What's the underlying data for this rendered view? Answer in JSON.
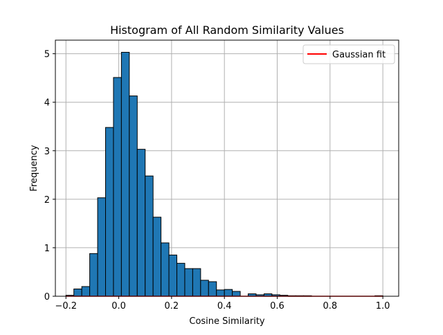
{
  "chart_data": {
    "type": "bar",
    "title": "Histogram of All Random Similarity Values",
    "xlabel": "Cosine Similarity",
    "ylabel": "Frequency",
    "xlim": [
      -0.24,
      1.06
    ],
    "ylim": [
      0,
      5.28
    ],
    "xticks": [
      -0.2,
      0.0,
      0.2,
      0.4,
      0.6,
      0.8,
      1.0
    ],
    "xtick_labels": [
      "−0.2",
      "0.0",
      "0.2",
      "0.4",
      "0.6",
      "0.8",
      "1.0"
    ],
    "yticks": [
      0,
      1,
      2,
      3,
      4,
      5
    ],
    "ytick_labels": [
      "0",
      "1",
      "2",
      "3",
      "4",
      "5"
    ],
    "grid": true,
    "legend_position": "top-right",
    "bin_width": 0.03,
    "bin_edges_start": -0.2,
    "counts": [
      0.02,
      0.15,
      0.2,
      0.88,
      2.03,
      3.48,
      4.51,
      5.03,
      4.13,
      3.03,
      2.48,
      1.63,
      1.1,
      0.85,
      0.68,
      0.57,
      0.57,
      0.33,
      0.3,
      0.13,
      0.14,
      0.1,
      0.0,
      0.05,
      0.03,
      0.05,
      0.03,
      0.02,
      0.01,
      0.01,
      0.01,
      0.0,
      0.0,
      0.0,
      0.0,
      0.0,
      0.0,
      0.0,
      0.0,
      0.01
    ],
    "bar_color": "#1f77b4",
    "bar_edge_color": "#000000",
    "series": [
      {
        "name": "Gaussian fit",
        "type": "line",
        "color": "#ff0000",
        "x": [
          -0.2,
          1.0
        ],
        "y": [
          0.0,
          0.0
        ]
      }
    ]
  }
}
